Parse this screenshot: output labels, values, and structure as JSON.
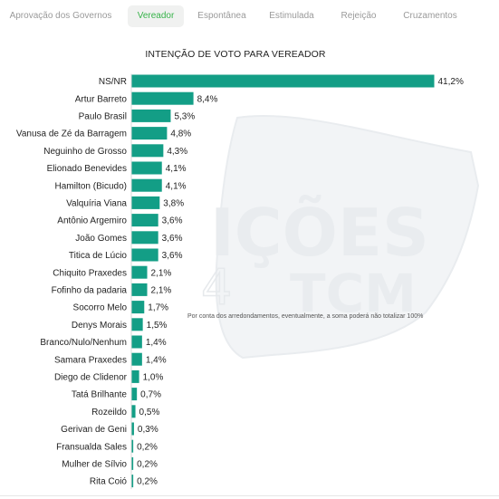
{
  "tabs": [
    {
      "label": "Aprovação dos Governos",
      "active": false
    },
    {
      "label": "Vereador",
      "active": true
    },
    {
      "label": "Espontânea",
      "active": false
    },
    {
      "label": "Estimulada",
      "active": false
    },
    {
      "label": "Rejeição",
      "active": false
    },
    {
      "label": "Cruzamentos",
      "active": false
    }
  ],
  "note": "Por conta dos arredondamentos, eventualmente, a soma poderá não totalizar 100%",
  "watermark": {
    "word1": "IÇÕES",
    "word2": "TCM",
    "digit": "4",
    "color": "#e9ecef"
  },
  "colors": {
    "bar": "#139e86",
    "accent": "#37b34a"
  },
  "chart_data": {
    "type": "bar",
    "orientation": "horizontal",
    "title": "INTENÇÃO DE VOTO PARA VEREADOR",
    "categories": [
      "NS/NR",
      "Artur Barreto",
      "Paulo Brasil",
      "Vanusa de Zé da Barragem",
      "Neguinho de Grosso",
      "Elionado Benevides",
      "Hamilton (Bicudo)",
      "Valquíria Viana",
      "Antônio Argemiro",
      "João Gomes",
      "Titica de Lúcio",
      "Chiquito Praxedes",
      "Fofinho da padaria",
      "Socorro Melo",
      "Denys Morais",
      "Branco/Nulo/Nenhum",
      "Samara Praxedes",
      "Diego de Clidenor",
      "Tatá Brilhante",
      "Rozeildo",
      "Gerivan de Geni",
      "Fransualda Sales",
      "Mulher de Sílvio",
      "Rita Coió"
    ],
    "values": [
      41.2,
      8.4,
      5.3,
      4.8,
      4.3,
      4.1,
      4.1,
      3.8,
      3.6,
      3.6,
      3.6,
      2.1,
      2.1,
      1.7,
      1.5,
      1.4,
      1.4,
      1.0,
      0.7,
      0.5,
      0.3,
      0.2,
      0.2,
      0.2
    ],
    "labels": [
      "41,2%",
      "8,4%",
      "5,3%",
      "4,8%",
      "4,3%",
      "4,1%",
      "4,1%",
      "3,8%",
      "3,6%",
      "3,6%",
      "3,6%",
      "2,1%",
      "2,1%",
      "1,7%",
      "1,5%",
      "1,4%",
      "1,4%",
      "1,0%",
      "0,7%",
      "0,5%",
      "0,3%",
      "0,2%",
      "0,2%",
      "0,2%"
    ],
    "xlim": [
      0,
      41.2
    ],
    "grid": false,
    "legend": "none"
  }
}
